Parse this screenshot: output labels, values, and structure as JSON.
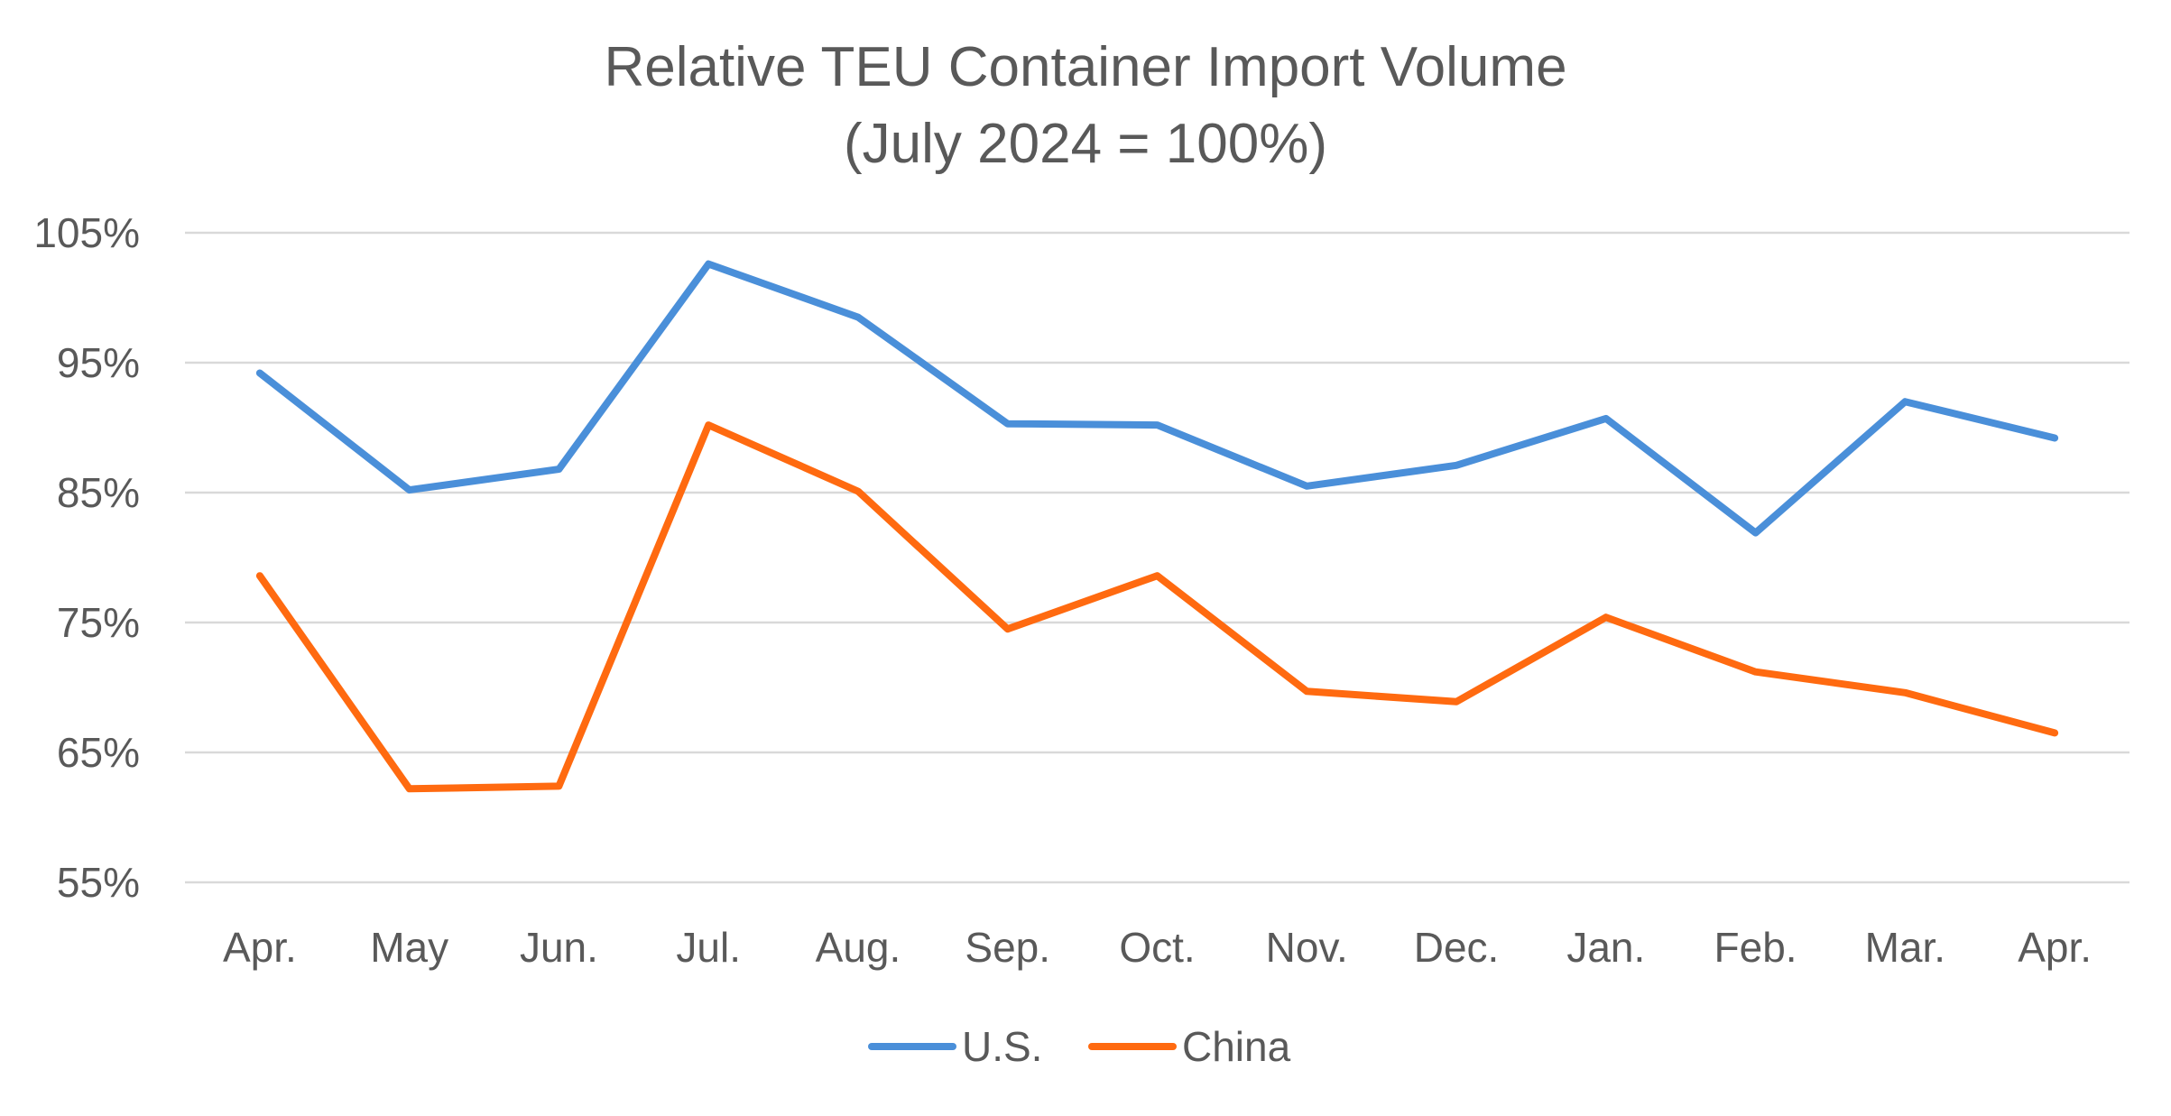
{
  "chart_data": {
    "type": "line",
    "title": [
      "Relative TEU Container Import Volume",
      "(July 2024 = 100%)"
    ],
    "xlabel": "",
    "ylabel": "",
    "categories": [
      "Apr.",
      "May",
      "Jun.",
      "Jul.",
      "Aug.",
      "Sep.",
      "Oct.",
      "Nov.",
      "Dec.",
      "Jan.",
      "Feb.",
      "Mar.",
      "Apr."
    ],
    "ylim": [
      55,
      105
    ],
    "yticks": [
      105,
      95,
      85,
      75,
      65,
      55
    ],
    "ytick_labels": [
      "105%",
      "95%",
      "85%",
      "75%",
      "65%",
      "55%"
    ],
    "grid": true,
    "legend_position": "bottom",
    "series": [
      {
        "name": "U.S.",
        "color": "#4A8FD9",
        "values": [
          94.2,
          85.2,
          86.8,
          102.6,
          98.5,
          90.3,
          90.2,
          85.5,
          87.1,
          90.7,
          81.9,
          92.0,
          89.2
        ]
      },
      {
        "name": "China",
        "color": "#FF6A10",
        "values": [
          78.6,
          62.2,
          62.4,
          90.2,
          85.1,
          74.5,
          78.6,
          69.7,
          68.9,
          75.4,
          71.2,
          69.6,
          66.5
        ]
      }
    ]
  }
}
